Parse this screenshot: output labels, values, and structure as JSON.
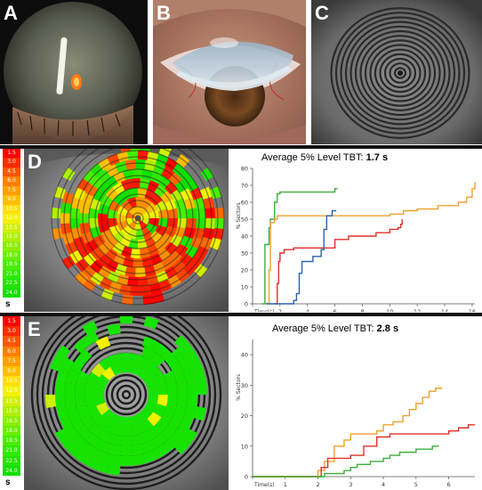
{
  "panels": {
    "a": "A",
    "b": "B",
    "c": "C",
    "d": "D",
    "e": "E"
  },
  "scale": {
    "values": [
      "1.5",
      "3.0",
      "4.5",
      "6.0",
      "7.5",
      "9.0",
      "10.5",
      "12.0",
      "13.5",
      "15.0",
      "16.5",
      "18.0",
      "19.5",
      "21.0",
      "22.5",
      "24.0"
    ],
    "colors": [
      "#ff0000",
      "#ff2a00",
      "#ff5500",
      "#ff7f00",
      "#ff9f00",
      "#ffbf00",
      "#ffdf00",
      "#f2f200",
      "#d0ef00",
      "#aef000",
      "#8cee00",
      "#6aee00",
      "#48ee00",
      "#30ea00",
      "#20e400",
      "#10df00"
    ],
    "unit": "s"
  },
  "chart_data": [
    {
      "type": "line",
      "title": "Average 5% Level TBT:",
      "title_value": "1.7 s",
      "ylabel": "% Sectors",
      "xlabel": "Time(s)",
      "xlim": [
        0,
        16.2
      ],
      "ylim": [
        0,
        80
      ],
      "xticks": [
        0,
        2,
        4,
        6,
        8,
        10,
        12,
        14,
        16
      ],
      "yticks": [
        0,
        10,
        20,
        30,
        40,
        50,
        60,
        70,
        80
      ],
      "grid": false,
      "series": [
        {
          "color": "#3cae3c",
          "x": [
            0.7,
            0.9,
            0.9,
            1.1,
            1.2,
            1.3,
            1.4,
            1.6,
            1.8,
            2.0,
            2.4,
            3.0,
            3.6,
            4.0,
            5.0,
            6.0,
            6.2
          ],
          "y": [
            0,
            5,
            35,
            35,
            45,
            50,
            50,
            60,
            65,
            66,
            66,
            66,
            66,
            66,
            66,
            68,
            68
          ]
        },
        {
          "color": "#f0a030",
          "x": [
            1.0,
            1.2,
            1.3,
            1.6,
            1.8,
            2.2,
            3.0,
            5.0,
            8.0,
            9.0,
            10.0,
            11.0,
            12.0,
            13.5,
            15.0,
            15.6,
            16.0,
            16.2
          ],
          "y": [
            0,
            20,
            48,
            50,
            52,
            52,
            52,
            52,
            52,
            52,
            53,
            55,
            56,
            58,
            60,
            63,
            68,
            72
          ]
        },
        {
          "color": "#e0302a",
          "x": [
            1.6,
            1.8,
            1.9,
            2.0,
            2.3,
            2.7,
            3.0,
            4.0,
            5.0,
            6.0,
            7.0,
            8.0,
            9.0,
            10.0,
            10.6,
            10.8,
            10.9
          ],
          "y": [
            0,
            12,
            25,
            30,
            32,
            32,
            33,
            33,
            33,
            38,
            40,
            40,
            42,
            44,
            45,
            47,
            50
          ]
        },
        {
          "color": "#2a62a8",
          "x": [
            1.0,
            2.0,
            3.0,
            3.2,
            3.4,
            3.6,
            4.0,
            4.4,
            5.0,
            5.2,
            5.4,
            5.8,
            6.0,
            6.1
          ],
          "y": [
            0,
            0,
            2,
            6,
            18,
            25,
            25,
            28,
            32,
            44,
            52,
            55,
            55,
            55
          ]
        }
      ]
    },
    {
      "type": "line",
      "title": "Average 5% Level TBT:",
      "title_value": "2.8 s",
      "ylabel": "% Sectors",
      "xlabel": "Time(s)",
      "xlim": [
        0,
        6.8
      ],
      "ylim": [
        0,
        45
      ],
      "xticks": [
        0,
        1,
        2,
        3,
        4,
        5,
        6
      ],
      "yticks": [
        0,
        10,
        20,
        30,
        40
      ],
      "grid": false,
      "series": [
        {
          "color": "#f0a030",
          "x": [
            0,
            1.9,
            2.0,
            2.2,
            2.5,
            2.8,
            3.0,
            3.4,
            3.6,
            3.8,
            4.0,
            4.3,
            4.6,
            4.8,
            5.0,
            5.2,
            5.4,
            5.6,
            5.8
          ],
          "y": [
            0,
            0,
            2,
            5,
            10,
            12,
            14,
            14,
            14,
            15,
            17,
            18,
            20,
            22,
            24,
            26,
            28,
            29,
            29
          ]
        },
        {
          "color": "#e0302a",
          "x": [
            0,
            1.9,
            2.1,
            2.3,
            2.6,
            3.0,
            3.4,
            3.8,
            4.2,
            4.4,
            5.0,
            5.6,
            6.0,
            6.3,
            6.6,
            6.8
          ],
          "y": [
            0,
            0,
            3,
            6,
            6,
            7,
            10,
            13,
            14,
            14,
            14,
            14,
            15,
            16,
            17,
            17
          ]
        },
        {
          "color": "#3cae3c",
          "x": [
            0,
            1.9,
            2.2,
            2.5,
            2.8,
            3.0,
            3.2,
            3.4,
            3.6,
            3.8,
            4.0,
            4.2,
            4.5,
            4.8,
            5.0,
            5.5,
            5.7
          ],
          "y": [
            0,
            0,
            1,
            1,
            2,
            3,
            4,
            4,
            5,
            5,
            6,
            7,
            8,
            8,
            9,
            10,
            10
          ]
        }
      ]
    }
  ]
}
